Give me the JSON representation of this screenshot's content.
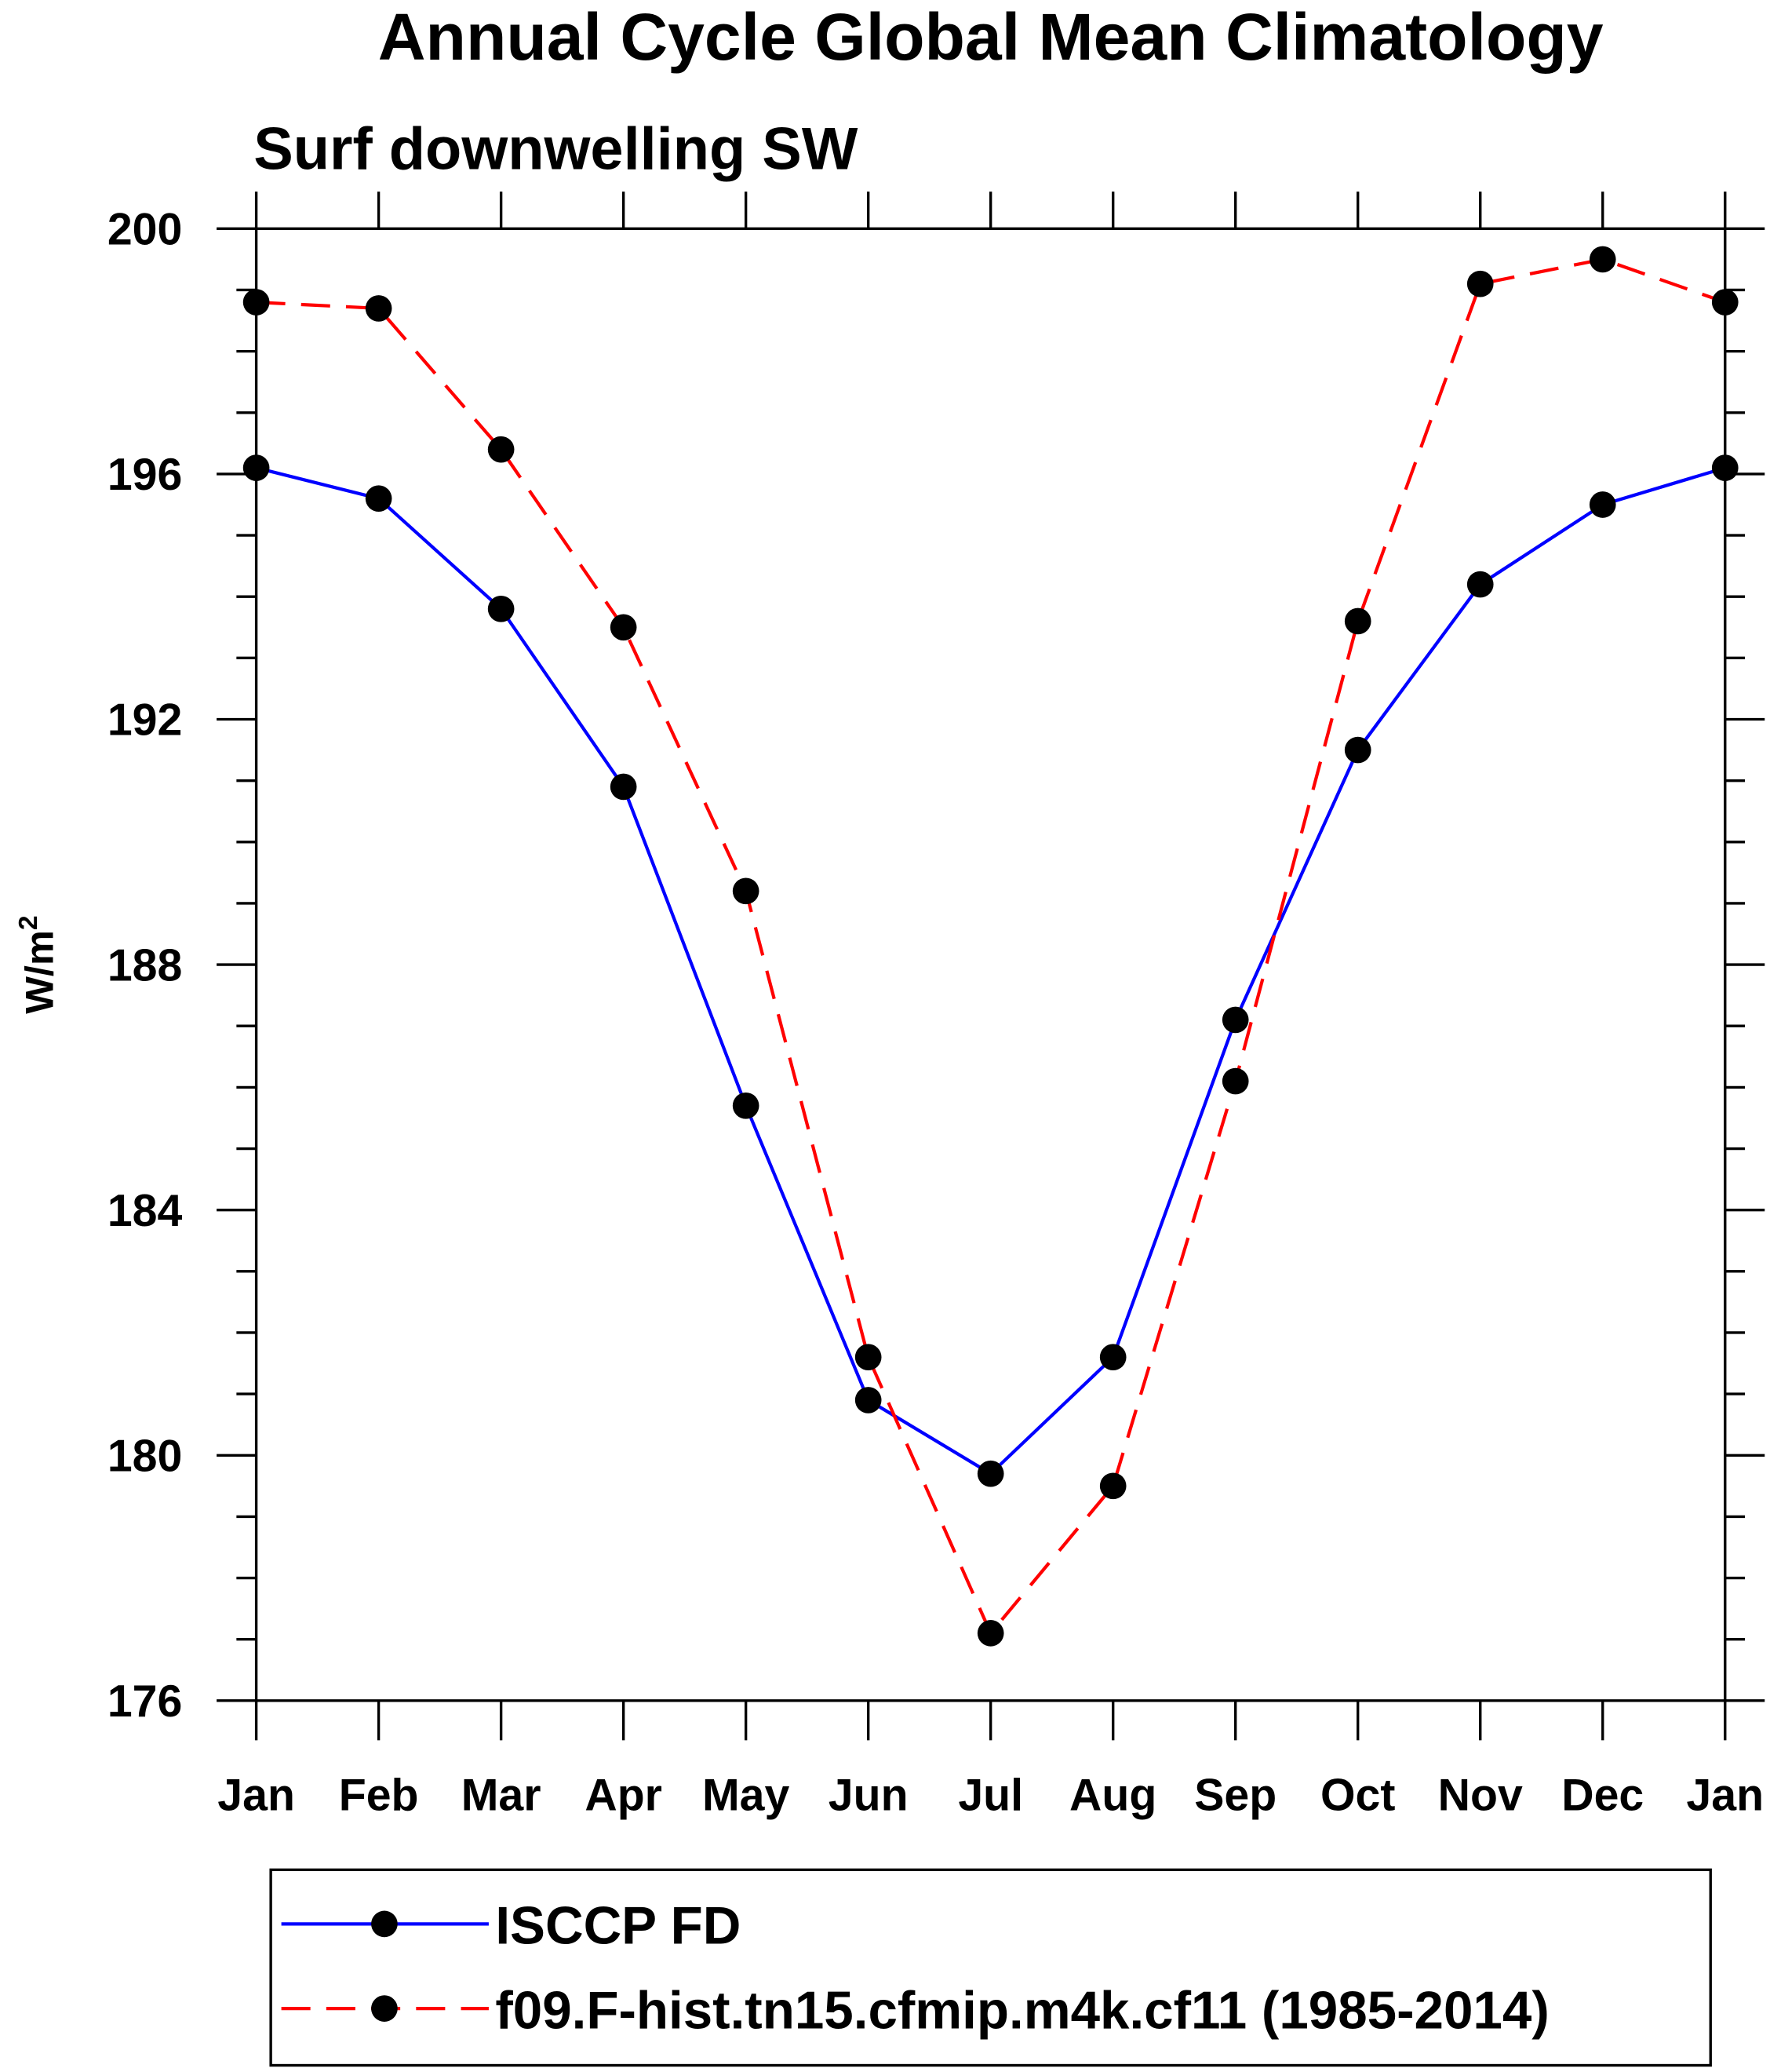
{
  "chart_data": {
    "type": "line",
    "title": "Annual Cycle Global Mean Climatology",
    "subtitle": "Surf downwelling SW",
    "ylabel": "W/m",
    "ylabel_sup": "2",
    "xlabel": "",
    "categories": [
      "Jan",
      "Feb",
      "Mar",
      "Apr",
      "May",
      "Jun",
      "Jul",
      "Aug",
      "Sep",
      "Oct",
      "Nov",
      "Dec",
      "Jan"
    ],
    "ylim": [
      176,
      200
    ],
    "yticks": [
      176,
      180,
      184,
      188,
      192,
      196,
      200
    ],
    "yminor_step": 1,
    "grid": false,
    "legend_position": "bottom",
    "series": [
      {
        "name": "ISCCP FD",
        "color": "#0000ff",
        "dash": "solid",
        "values": [
          196.1,
          195.6,
          193.8,
          190.9,
          185.7,
          180.9,
          179.7,
          181.6,
          187.1,
          191.5,
          194.2,
          195.5,
          196.1
        ]
      },
      {
        "name": "f09.F-hist.tn15.cfmip.m4k.cf11 (1985-2014)",
        "color": "#ff0000",
        "dash": "dashed",
        "values": [
          198.8,
          198.7,
          196.4,
          193.5,
          189.2,
          181.6,
          177.1,
          179.5,
          186.1,
          193.6,
          199.1,
          199.5,
          198.8
        ]
      }
    ]
  }
}
